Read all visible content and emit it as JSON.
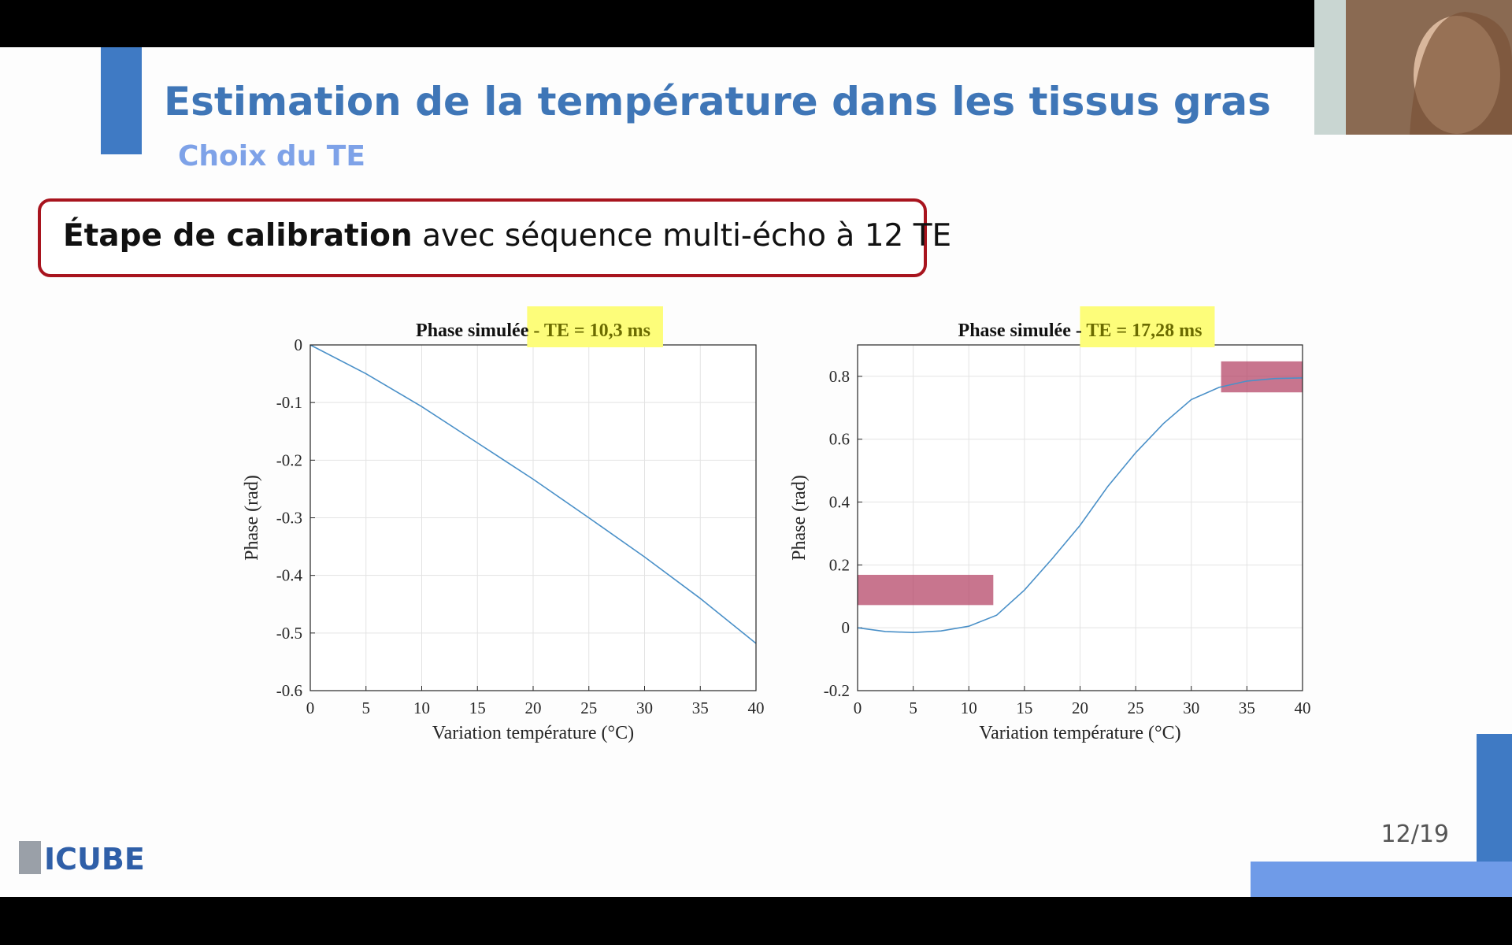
{
  "slide": {
    "title": "Estimation de la température dans les tissus gras",
    "subtitle": "Choix du TE",
    "callout_bold": "Étape de calibration",
    "callout_text": "avec séquence multi-écho à 12 TE",
    "page_number": "12/19",
    "logo": "ICUBE"
  },
  "chart_data": [
    {
      "type": "line",
      "title": "Phase simulée",
      "title_highlight": "- TE = 10,3 ms",
      "xlabel": "Variation température (°C)",
      "ylabel": "Phase (rad)",
      "x": [
        0,
        5,
        10,
        15,
        20,
        25,
        30,
        35,
        40
      ],
      "series": [
        {
          "color": "#4a90c8",
          "values": [
            0,
            -0.05,
            -0.107,
            -0.17,
            -0.233,
            -0.3,
            -0.368,
            -0.44,
            -0.518
          ]
        }
      ],
      "xlim": [
        0,
        40
      ],
      "xticks": [
        0,
        5,
        10,
        15,
        20,
        25,
        30,
        35,
        40
      ],
      "ylim": [
        -0.6,
        0
      ],
      "yticks": [
        0,
        -0.1,
        -0.2,
        -0.3,
        -0.4,
        -0.5,
        -0.6
      ],
      "grid": true
    },
    {
      "type": "line",
      "title": "Phase simulée -",
      "title_highlight": "TE = 17,28 ms",
      "xlabel": "Variation température (°C)",
      "ylabel": "Phase (rad)",
      "x": [
        0,
        2.5,
        5,
        7.5,
        10,
        12.5,
        15,
        17.5,
        20,
        22.5,
        25,
        27.5,
        30,
        32.5,
        35,
        37.5,
        40
      ],
      "series": [
        {
          "color": "#4a90c8",
          "values": [
            0,
            -0.012,
            -0.015,
            -0.01,
            0.005,
            0.04,
            0.12,
            0.22,
            0.326,
            0.45,
            0.557,
            0.65,
            0.726,
            0.765,
            0.785,
            0.793,
            0.795
          ]
        }
      ],
      "xlim": [
        0,
        40
      ],
      "xticks": [
        0,
        5,
        10,
        15,
        20,
        25,
        30,
        35,
        40
      ],
      "ylim": [
        -0.2,
        0.9
      ],
      "yticks": [
        0.8,
        0.6,
        0.4,
        0.2,
        0,
        -0.2
      ],
      "grid": true
    }
  ]
}
